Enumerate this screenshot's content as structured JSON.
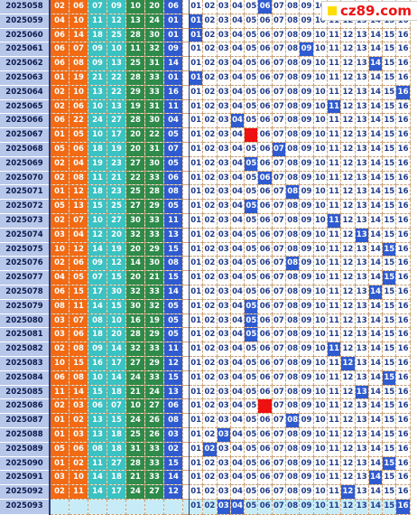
{
  "watermark": {
    "text": "cz89.com",
    "icon": "yellow-square-icon"
  },
  "colors": {
    "issue_bg": "#b7c7ea",
    "orange": "#f26a14",
    "cyan": "#3bc2c2",
    "green": "#2e8b4a",
    "blue": "#2f5bd1",
    "red": "#ee1111",
    "last_row": "#c8ecf7"
  },
  "grid_numbers": [
    "01",
    "02",
    "03",
    "04",
    "05",
    "06",
    "07",
    "08",
    "09",
    "10",
    "11",
    "12",
    "13",
    "14",
    "15",
    "16"
  ],
  "rows": [
    {
      "issue": "2025058",
      "reds": [
        "02",
        "06",
        "07",
        "09",
        "10",
        "20"
      ],
      "blue": "06",
      "miss": [],
      "hl": [
        6
      ]
    },
    {
      "issue": "2025059",
      "reds": [
        "04",
        "10",
        "11",
        "12",
        "13",
        "24"
      ],
      "blue": "01",
      "miss": [],
      "hl": [
        1
      ]
    },
    {
      "issue": "2025060",
      "reds": [
        "06",
        "14",
        "18",
        "25",
        "28",
        "30"
      ],
      "blue": "01",
      "miss": [],
      "hl": [
        1
      ]
    },
    {
      "issue": "2025061",
      "reds": [
        "06",
        "07",
        "09",
        "10",
        "11",
        "32"
      ],
      "blue": "09",
      "miss": [],
      "hl": [
        9
      ]
    },
    {
      "issue": "2025062",
      "reds": [
        "06",
        "08",
        "09",
        "13",
        "25",
        "31"
      ],
      "blue": "14",
      "miss": [],
      "hl": [
        14
      ]
    },
    {
      "issue": "2025063",
      "reds": [
        "01",
        "19",
        "21",
        "22",
        "28",
        "33"
      ],
      "blue": "01",
      "miss": [],
      "hl": [
        1
      ]
    },
    {
      "issue": "2025064",
      "reds": [
        "02",
        "10",
        "13",
        "22",
        "29",
        "33"
      ],
      "blue": "16",
      "miss": [],
      "hl": [
        16
      ]
    },
    {
      "issue": "2025065",
      "reds": [
        "02",
        "06",
        "10",
        "13",
        "19",
        "31"
      ],
      "blue": "11",
      "miss": [],
      "hl": [
        11
      ]
    },
    {
      "issue": "2025066",
      "reds": [
        "06",
        "22",
        "24",
        "27",
        "28",
        "30"
      ],
      "blue": "04",
      "miss": [],
      "hl": [
        4
      ]
    },
    {
      "issue": "2025067",
      "reds": [
        "01",
        "05",
        "10",
        "17",
        "20",
        "22"
      ],
      "blue": "05",
      "miss": [],
      "hl": [
        5
      ],
      "red": [
        5
      ]
    },
    {
      "issue": "2025068",
      "reds": [
        "05",
        "06",
        "18",
        "19",
        "20",
        "31"
      ],
      "blue": "07",
      "miss": [],
      "hl": [
        7
      ]
    },
    {
      "issue": "2025069",
      "reds": [
        "02",
        "04",
        "19",
        "23",
        "27",
        "30"
      ],
      "blue": "05",
      "miss": [],
      "hl": [
        5
      ]
    },
    {
      "issue": "2025070",
      "reds": [
        "02",
        "08",
        "11",
        "21",
        "22",
        "33"
      ],
      "blue": "06",
      "miss": [],
      "hl": [
        6
      ]
    },
    {
      "issue": "2025071",
      "reds": [
        "01",
        "12",
        "18",
        "23",
        "25",
        "28"
      ],
      "blue": "08",
      "miss": [],
      "hl": [
        8
      ]
    },
    {
      "issue": "2025072",
      "reds": [
        "05",
        "13",
        "15",
        "25",
        "27",
        "29"
      ],
      "blue": "05",
      "miss": [],
      "hl": [
        5
      ]
    },
    {
      "issue": "2025073",
      "reds": [
        "02",
        "07",
        "10",
        "27",
        "30",
        "33"
      ],
      "blue": "11",
      "miss": [],
      "hl": [
        11
      ]
    },
    {
      "issue": "2025074",
      "reds": [
        "03",
        "04",
        "12",
        "20",
        "32",
        "33"
      ],
      "blue": "13",
      "miss": [],
      "hl": [
        13
      ]
    },
    {
      "issue": "2025075",
      "reds": [
        "10",
        "12",
        "14",
        "19",
        "20",
        "29"
      ],
      "blue": "15",
      "miss": [],
      "hl": [
        15
      ]
    },
    {
      "issue": "2025076",
      "reds": [
        "02",
        "06",
        "09",
        "12",
        "14",
        "30"
      ],
      "blue": "08",
      "miss": [],
      "hl": [
        8
      ]
    },
    {
      "issue": "2025077",
      "reds": [
        "04",
        "05",
        "07",
        "15",
        "20",
        "21"
      ],
      "blue": "15",
      "miss": [],
      "hl": [
        15
      ]
    },
    {
      "issue": "2025078",
      "reds": [
        "06",
        "15",
        "17",
        "30",
        "32",
        "33"
      ],
      "blue": "14",
      "miss": [],
      "hl": [
        14
      ]
    },
    {
      "issue": "2025079",
      "reds": [
        "08",
        "11",
        "14",
        "15",
        "30",
        "32"
      ],
      "blue": "05",
      "miss": [],
      "hl": [
        5
      ]
    },
    {
      "issue": "2025080",
      "reds": [
        "03",
        "07",
        "08",
        "10",
        "16",
        "19"
      ],
      "blue": "05",
      "miss": [],
      "hl": [
        5
      ]
    },
    {
      "issue": "2025081",
      "reds": [
        "03",
        "06",
        "18",
        "20",
        "28",
        "29"
      ],
      "blue": "05",
      "miss": [],
      "hl": [
        5
      ]
    },
    {
      "issue": "2025082",
      "reds": [
        "02",
        "08",
        "09",
        "14",
        "32",
        "33"
      ],
      "blue": "11",
      "miss": [],
      "hl": [
        11
      ]
    },
    {
      "issue": "2025083",
      "reds": [
        "10",
        "15",
        "16",
        "17",
        "27",
        "29"
      ],
      "blue": "12",
      "miss": [],
      "hl": [
        12
      ]
    },
    {
      "issue": "2025084",
      "reds": [
        "06",
        "08",
        "10",
        "14",
        "24",
        "33"
      ],
      "blue": "15",
      "miss": [],
      "hl": [
        15
      ]
    },
    {
      "issue": "2025085",
      "reds": [
        "11",
        "14",
        "15",
        "18",
        "21",
        "24"
      ],
      "blue": "13",
      "miss": [],
      "hl": [
        13
      ]
    },
    {
      "issue": "2025086",
      "reds": [
        "02",
        "03",
        "06",
        "07",
        "10",
        "27"
      ],
      "blue": "06",
      "miss": [],
      "hl": [
        6
      ],
      "red": [
        6
      ]
    },
    {
      "issue": "2025087",
      "reds": [
        "01",
        "02",
        "13",
        "15",
        "24",
        "26"
      ],
      "blue": "08",
      "miss": [],
      "hl": [
        8
      ]
    },
    {
      "issue": "2025088",
      "reds": [
        "01",
        "03",
        "13",
        "18",
        "25",
        "26"
      ],
      "blue": "03",
      "miss": [],
      "hl": [
        3
      ]
    },
    {
      "issue": "2025089",
      "reds": [
        "05",
        "06",
        "08",
        "18",
        "31",
        "33"
      ],
      "blue": "02",
      "miss": [],
      "hl": [
        2
      ]
    },
    {
      "issue": "2025090",
      "reds": [
        "01",
        "02",
        "11",
        "27",
        "28",
        "33"
      ],
      "blue": "15",
      "miss": [],
      "hl": [
        15
      ]
    },
    {
      "issue": "2025091",
      "reds": [
        "03",
        "10",
        "14",
        "18",
        "21",
        "33"
      ],
      "blue": "14",
      "miss": [],
      "hl": [
        14
      ]
    },
    {
      "issue": "2025092",
      "reds": [
        "02",
        "11",
        "14",
        "17",
        "24",
        "27"
      ],
      "blue": "12",
      "miss": [],
      "hl": [
        12
      ]
    },
    {
      "issue": "2025093",
      "reds": [
        "",
        "",
        "",
        "",
        "",
        ""
      ],
      "blue": "",
      "miss": [],
      "hl": [
        3,
        4,
        16
      ]
    }
  ]
}
